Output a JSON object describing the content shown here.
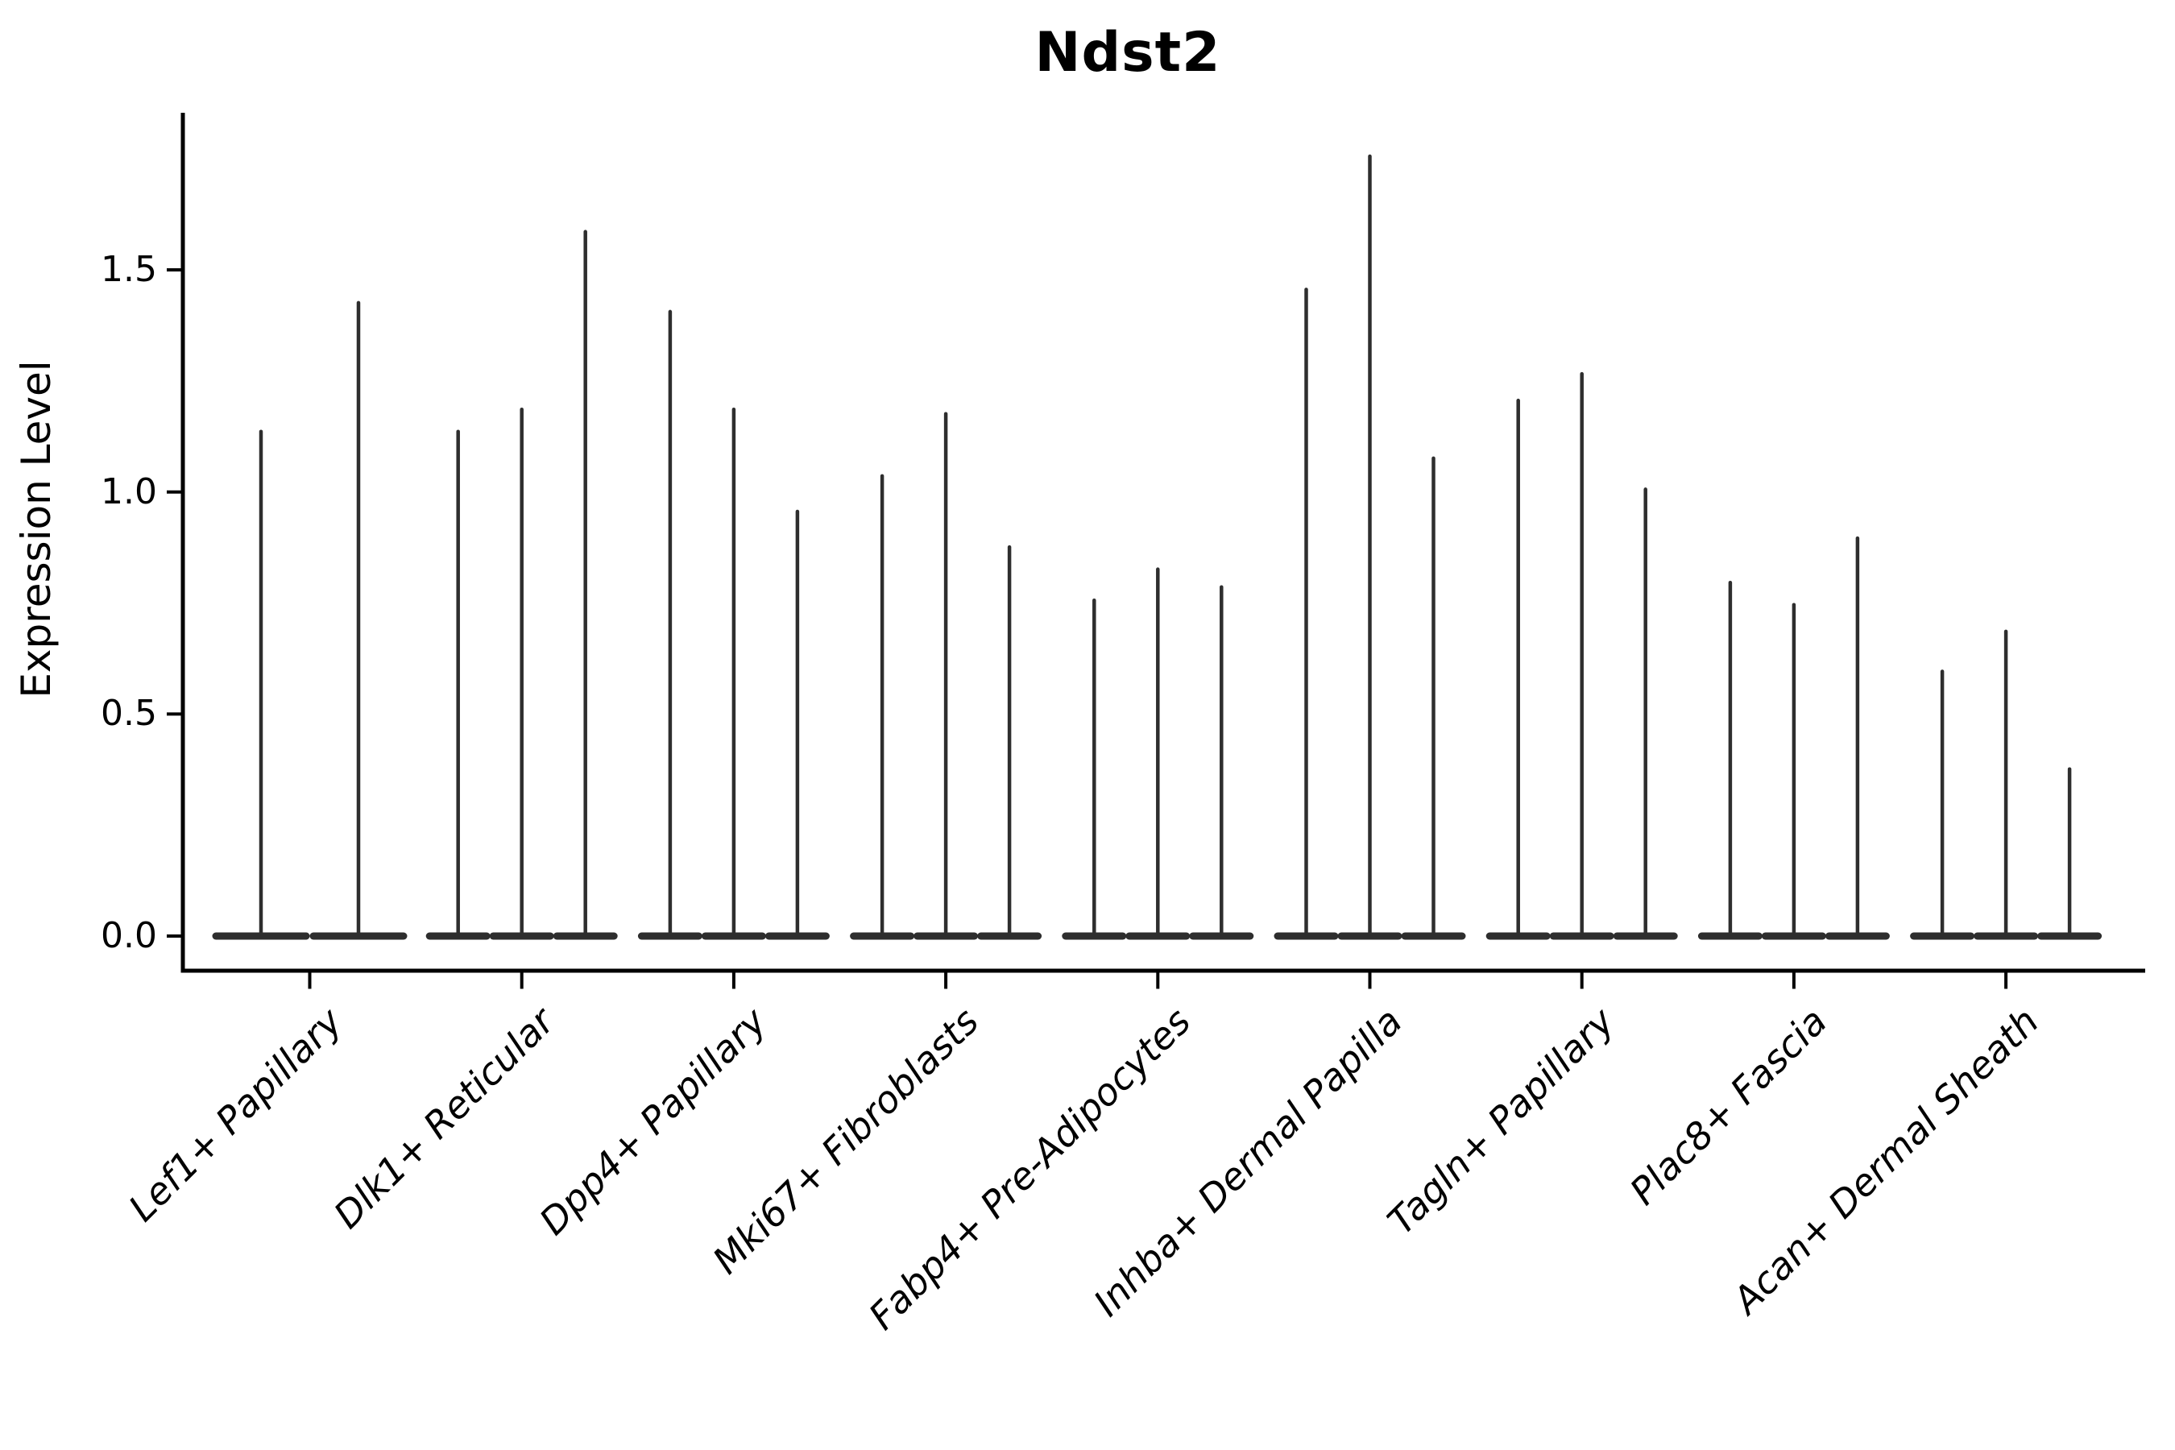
{
  "figure": {
    "background": "#ffffff"
  },
  "chart_data": {
    "type": "violin",
    "title": "Ndst2",
    "ylabel": "Expression Level",
    "xlabel": "",
    "grid": false,
    "legend_position": "none",
    "ylim": [
      -0.08,
      1.85
    ],
    "yticks": [
      0.0,
      0.5,
      1.0,
      1.5
    ],
    "ytick_labels": [
      "0.0",
      "0.5",
      "1.0",
      "1.5"
    ],
    "categories": [
      "Lef1+ Papillary",
      "Dlk1+ Reticular",
      "Dpp4+ Papillary",
      "Mki67+ Fibroblasts",
      "Fabp4+ Pre-Adipocytes",
      "Inhba+ Dermal Papilla",
      "Tagln+ Papillary",
      "Plac8+ Fascia",
      "Acan+ Dermal Sheath"
    ],
    "series": [
      {
        "category": "Lef1+ Papillary",
        "violin_max_values": [
          1.14,
          1.43
        ]
      },
      {
        "category": "Dlk1+ Reticular",
        "violin_max_values": [
          1.14,
          1.19,
          1.59
        ]
      },
      {
        "category": "Dpp4+ Papillary",
        "violin_max_values": [
          1.41,
          1.19,
          0.96
        ]
      },
      {
        "category": "Mki67+ Fibroblasts",
        "violin_max_values": [
          1.04,
          1.18,
          0.88
        ]
      },
      {
        "category": "Fabp4+ Pre-Adipocytes",
        "violin_max_values": [
          0.76,
          0.83,
          0.79
        ]
      },
      {
        "category": "Inhba+ Dermal Papilla",
        "violin_max_values": [
          1.46,
          1.76,
          1.08
        ]
      },
      {
        "category": "Tagln+ Papillary",
        "violin_max_values": [
          1.21,
          1.27,
          1.01
        ]
      },
      {
        "category": "Plac8+ Fascia",
        "violin_max_values": [
          0.8,
          0.75,
          0.9
        ]
      },
      {
        "category": "Acan+ Dermal Sheath",
        "violin_max_values": [
          0.6,
          0.69,
          0.38
        ]
      }
    ],
    "notes": "Each violin's density is concentrated at 0 (wide flat base) with a needle-thin spike up to the maximum expression value.",
    "colors": {
      "violin": "#2e2e2e",
      "axis": "#000000",
      "text": "#000000",
      "background": "#ffffff"
    }
  }
}
